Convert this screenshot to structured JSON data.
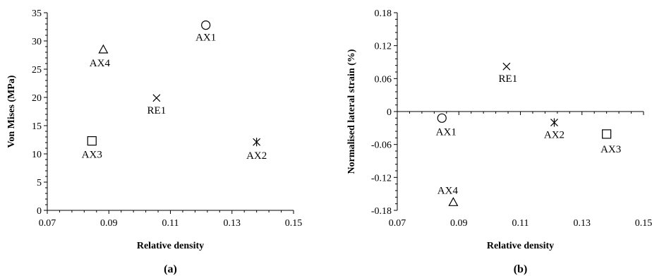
{
  "chart_data": [
    {
      "type": "scatter",
      "panel_label": "(a)",
      "xlabel": "Relative density",
      "ylabel": "Von Mises (MPa)",
      "xlim": [
        0.07,
        0.15
      ],
      "ylim": [
        0,
        35
      ],
      "xticks": [
        "0.07",
        "0.09",
        "0.11",
        "0.13",
        "0.15"
      ],
      "yticks": [
        "0",
        "5",
        "10",
        "15",
        "20",
        "25",
        "30",
        "35"
      ],
      "grid": false,
      "points": [
        {
          "label": "AX1",
          "marker": "circle",
          "x": 0.1215,
          "y": 32.8
        },
        {
          "label": "AX4",
          "marker": "triangle",
          "x": 0.0882,
          "y": 28.5
        },
        {
          "label": "RE1",
          "marker": "x",
          "x": 0.1055,
          "y": 19.9
        },
        {
          "label": "AX3",
          "marker": "square",
          "x": 0.0845,
          "y": 12.3
        },
        {
          "label": "AX2",
          "marker": "asterisk",
          "x": 0.138,
          "y": 12.1
        }
      ]
    },
    {
      "type": "scatter",
      "panel_label": "(b)",
      "xlabel": "Relative density",
      "ylabel": "Normalised lateral strain (%)",
      "xlim": [
        0.07,
        0.15
      ],
      "ylim": [
        -0.18,
        0.18
      ],
      "xticks": [
        "0.07",
        "0.09",
        "0.11",
        "0.13",
        "0.15"
      ],
      "yticks": [
        "-0.18",
        "-0.12",
        "-0.06",
        "0",
        "0.06",
        "0.12",
        "0.18"
      ],
      "grid": false,
      "points": [
        {
          "label": "RE1",
          "marker": "x",
          "x": 0.1055,
          "y": 0.082
        },
        {
          "label": "AX1",
          "marker": "circle",
          "x": 0.0845,
          "y": -0.012
        },
        {
          "label": "AX2",
          "marker": "asterisk",
          "x": 0.121,
          "y": -0.02
        },
        {
          "label": "AX3",
          "marker": "square",
          "x": 0.138,
          "y": -0.041
        },
        {
          "label": "AX4",
          "marker": "triangle",
          "x": 0.0882,
          "y": -0.165
        }
      ]
    }
  ]
}
